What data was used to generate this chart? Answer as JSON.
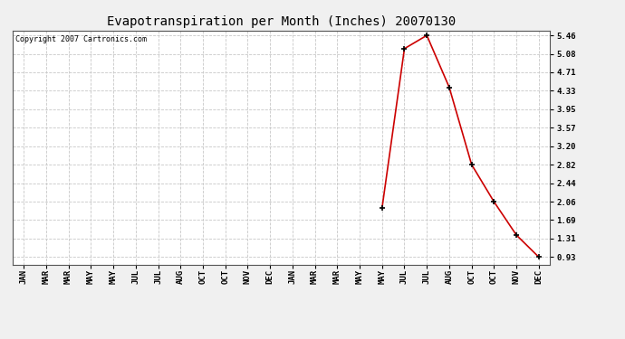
{
  "title": "Evapotranspiration per Month (Inches) 20070130",
  "copyright": "Copyright 2007 Cartronics.com",
  "x_labels": [
    "JAN",
    "MAR",
    "MAR",
    "MAY",
    "MAY",
    "JUL",
    "JUL",
    "AUG",
    "OCT",
    "OCT",
    "NOV",
    "DEC",
    "JAN",
    "MAR",
    "MAR",
    "MAY",
    "MAY",
    "JUL",
    "JUL",
    "AUG",
    "OCT",
    "OCT",
    "NOV",
    "DEC"
  ],
  "y_values": [
    null,
    null,
    null,
    null,
    null,
    null,
    null,
    null,
    null,
    null,
    null,
    null,
    null,
    null,
    null,
    null,
    1.93,
    5.19,
    5.46,
    4.4,
    2.82,
    2.06,
    1.38,
    0.93
  ],
  "y_ticks": [
    0.93,
    1.31,
    1.69,
    2.06,
    2.44,
    2.82,
    3.2,
    3.57,
    3.95,
    4.33,
    4.71,
    5.08,
    5.46
  ],
  "y_min": 0.93,
  "y_max": 5.46,
  "line_color": "#cc0000",
  "marker_color": "#000000",
  "bg_color": "#f0f0f0",
  "plot_bg_color": "#ffffff",
  "grid_color": "#c8c8c8",
  "title_fontsize": 10,
  "tick_fontsize": 6.5,
  "copyright_fontsize": 6
}
